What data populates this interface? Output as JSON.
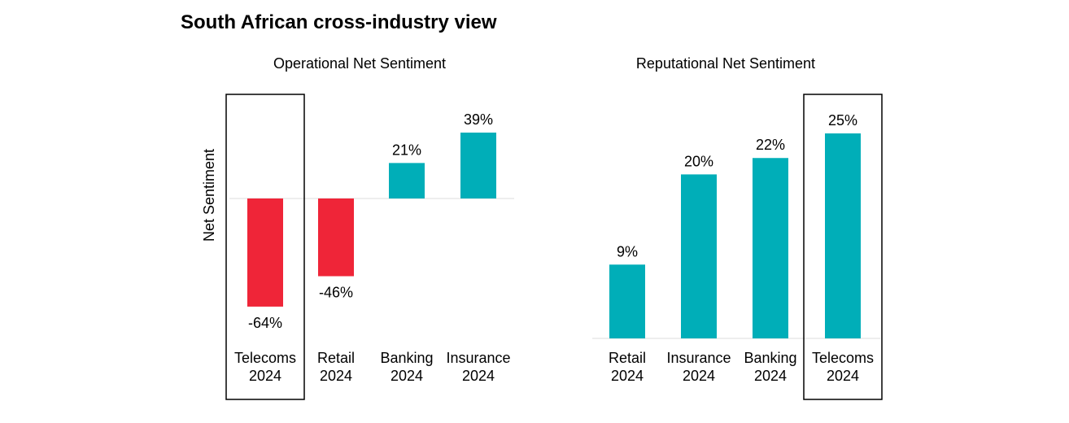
{
  "page": {
    "title": "South African cross-industry view"
  },
  "colors": {
    "positive": "#00AEB8",
    "negative": "#EF2538",
    "baseline": "#E8E8E8",
    "highlight_border": "#000000"
  },
  "chart_data": [
    {
      "type": "bar",
      "title": "Operational Net Sentiment",
      "ylabel": "Net Sentiment",
      "unit": "%",
      "categories": [
        "Telecoms 2024",
        "Retail 2024",
        "Banking 2024",
        "Insurance 2024"
      ],
      "category_lines": [
        [
          "Telecoms",
          "2024"
        ],
        [
          "Retail",
          "2024"
        ],
        [
          "Banking",
          "2024"
        ],
        [
          "Insurance",
          "2024"
        ]
      ],
      "values": [
        -64,
        -46,
        21,
        39
      ],
      "value_labels": [
        "-64%",
        "-46%",
        "21%",
        "39%"
      ],
      "ylim": [
        -70,
        45
      ],
      "highlighted_category": "Telecoms 2024",
      "grid": false
    },
    {
      "type": "bar",
      "title": "Reputational Net Sentiment",
      "ylabel": "",
      "unit": "%",
      "categories": [
        "Retail 2024",
        "Insurance 2024",
        "Banking 2024",
        "Telecoms 2024"
      ],
      "category_lines": [
        [
          "Retail",
          "2024"
        ],
        [
          "Insurance",
          "2024"
        ],
        [
          "Banking",
          "2024"
        ],
        [
          "Telecoms",
          "2024"
        ]
      ],
      "values": [
        9,
        20,
        22,
        25
      ],
      "value_labels": [
        "9%",
        "20%",
        "22%",
        "25%"
      ],
      "ylim": [
        0,
        27.5
      ],
      "highlighted_category": "Telecoms 2024",
      "grid": false
    }
  ]
}
